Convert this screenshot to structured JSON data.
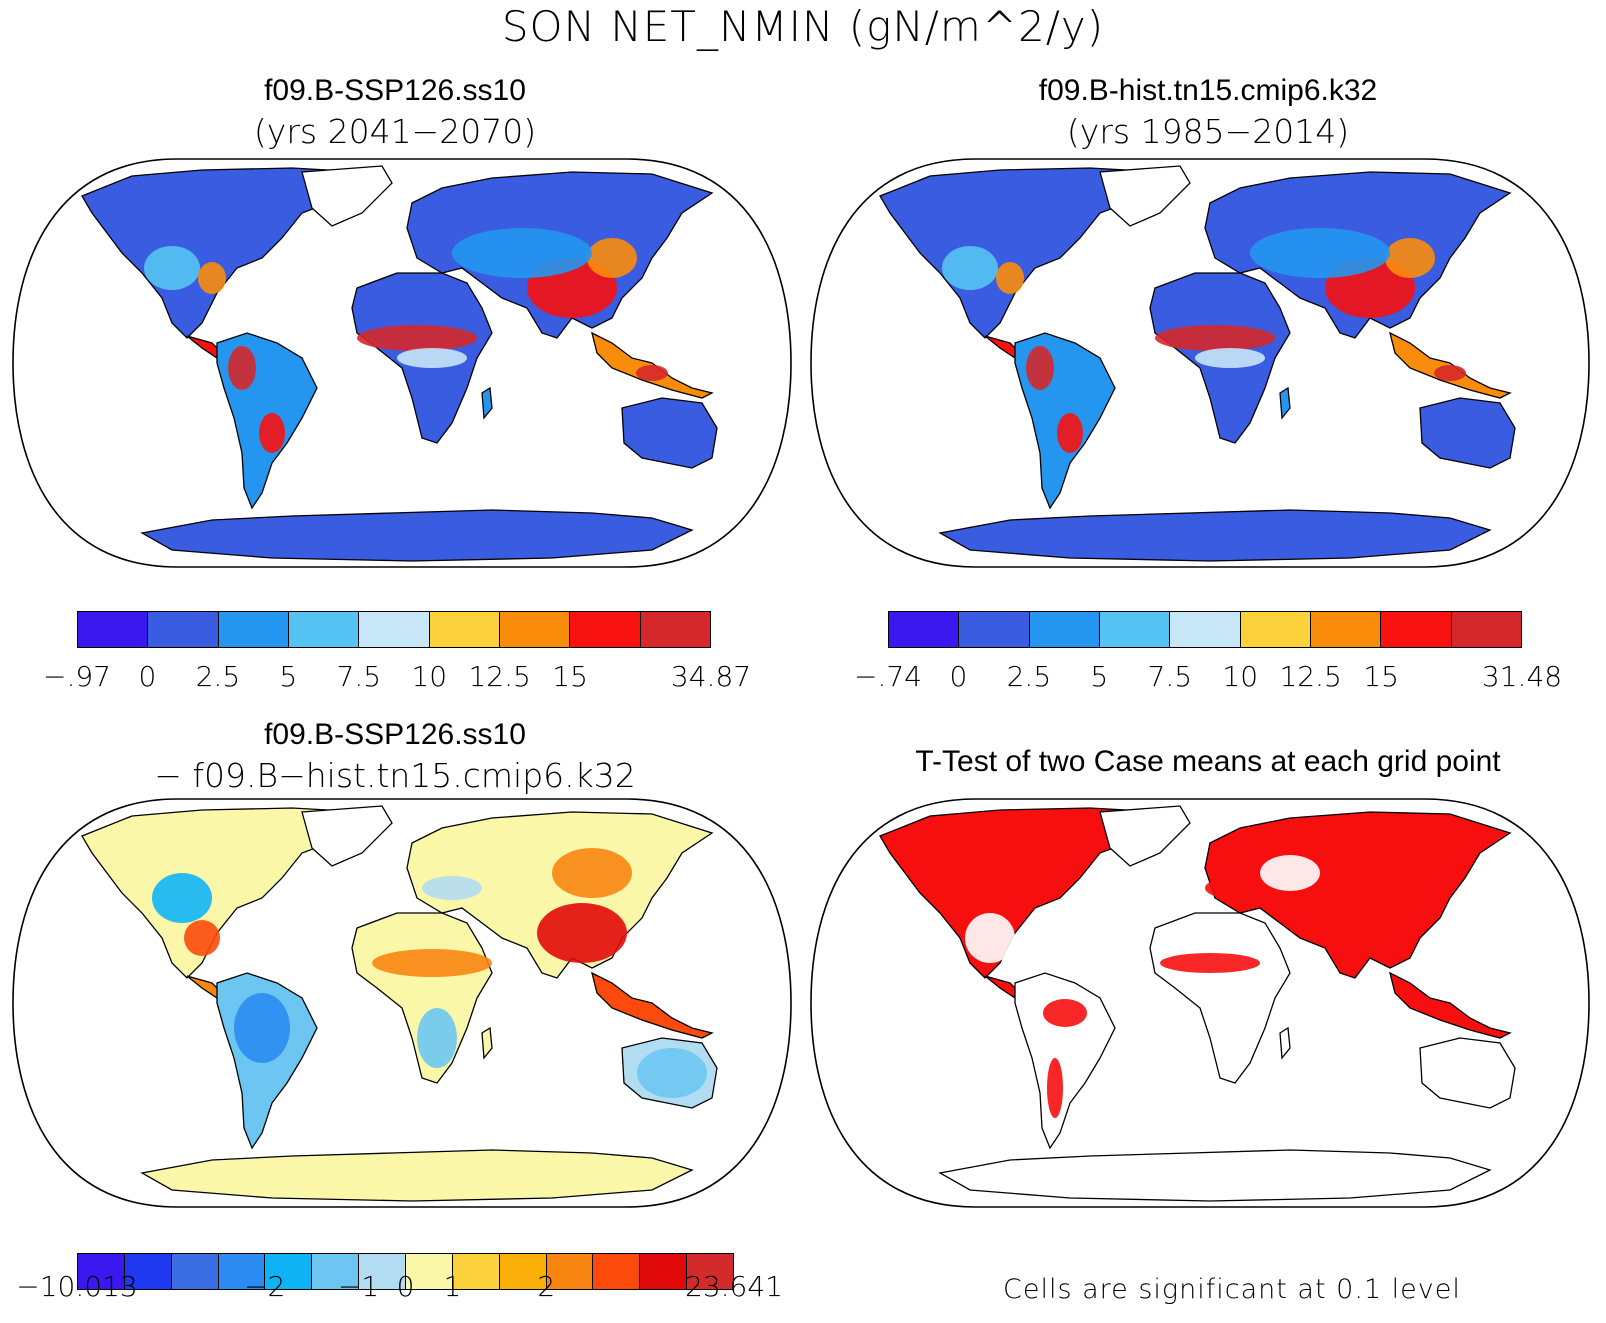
{
  "title": "SON NET_NMIN (gN/m^2/y)",
  "panels": [
    {
      "title": "f09.B-SSP126.ss10",
      "subtitle": "(yrs 2041−2070)",
      "kind": "field",
      "colors": [
        "#3b18f0",
        "#3a5ce0",
        "#2496f0",
        "#55c3f3",
        "#c7e6f7",
        "#fbd23c",
        "#fa8c0c",
        "#f7110f",
        "#d5282a"
      ],
      "labels": [
        "−.97",
        "0",
        "2.5",
        "5",
        "7.5",
        "10",
        "12.5",
        "15",
        "34.87"
      ]
    },
    {
      "title": "f09.B-hist.tn15.cmip6.k32",
      "subtitle": "(yrs 1985−2014)",
      "kind": "field",
      "colors": [
        "#3b18f0",
        "#3a5ce0",
        "#2496f0",
        "#55c3f3",
        "#c7e6f7",
        "#fbd23c",
        "#fa8c0c",
        "#f7110f",
        "#d5282a"
      ],
      "labels": [
        "−.74",
        "0",
        "2.5",
        "5",
        "7.5",
        "10",
        "12.5",
        "15",
        "31.48"
      ]
    },
    {
      "title": "f09.B-SSP126.ss10",
      "subtitle": "− f09.B−hist.tn15.cmip6.k32",
      "kind": "diff",
      "colors": [
        "#3b18f0",
        "#1e39f0",
        "#3a6ee2",
        "#2c8cf2",
        "#0fb4f6",
        "#6cc6f1",
        "#b2dcf2",
        "#fbf7a8",
        "#fbd23c",
        "#f9ae08",
        "#f88512",
        "#fb4a0c",
        "#e10a0a",
        "#d32b2b"
      ],
      "labels": [
        "−10.013",
        "−2",
        "−1",
        "0",
        "1",
        "2",
        "23.641"
      ]
    },
    {
      "title": "T-Test of two Case means at each grid point",
      "subtitle": "",
      "kind": "ttest",
      "colors": [
        "#f70f0f"
      ],
      "labels": []
    }
  ],
  "footnote": "Cells are significant at 0.1 level"
}
